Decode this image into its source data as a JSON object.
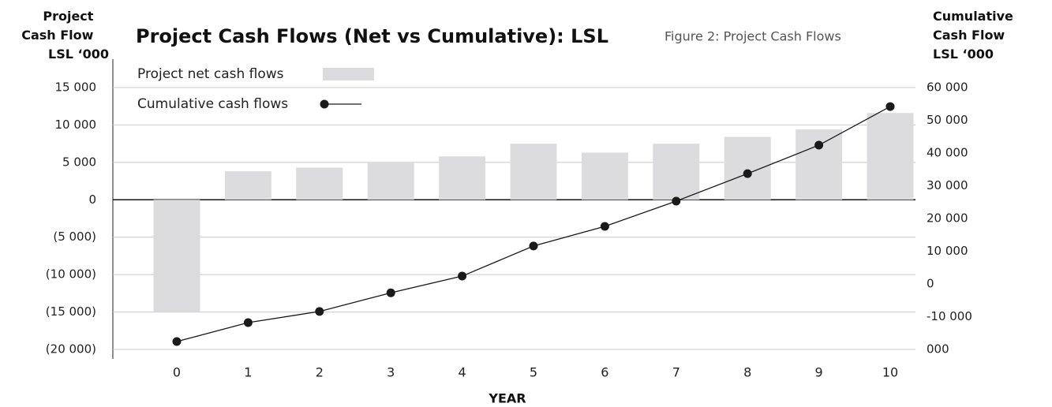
{
  "chart_data": {
    "type": "bar_line",
    "title": "Project Cash Flows (Net vs Cumulative): LSL",
    "caption": "Figure 2: Project Cash Flows",
    "ylabel": [
      "Project",
      "Cash Flow",
      "LSL ‘000"
    ],
    "y2label": [
      "Cumulative",
      "Cash Flow",
      "LSL ‘000"
    ],
    "xlabel": "YEAR",
    "categories": [
      "0",
      "1",
      "2",
      "3",
      "4",
      "5",
      "6",
      "7",
      "8",
      "9",
      "10"
    ],
    "series": [
      {
        "name": "Project net cash flows",
        "type": "bar",
        "color": "#dcdcde",
        "values": [
          -15000,
          3800,
          4300,
          5000,
          5800,
          7500,
          6300,
          7500,
          8400,
          9400,
          11600
        ]
      },
      {
        "name": "Cumulative cash flows",
        "type": "line",
        "axis": "y2",
        "color": "#1a1a1a",
        "values": [
          -17600,
          -11800,
          -8400,
          -2700,
          2400,
          11600,
          17600,
          25300,
          33700,
          42400,
          54200
        ]
      }
    ],
    "ylim": [
      -20000,
      15000
    ],
    "yticks": [
      {
        "value": 15000,
        "label": "15 000"
      },
      {
        "value": 10000,
        "label": "10 000"
      },
      {
        "value": 5000,
        "label": "5 000"
      },
      0,
      {
        "value": -5000,
        "label": "(5 000)"
      },
      {
        "value": -10000,
        "label": "(10 000)"
      },
      {
        "value": -15000,
        "label": "(15 000)"
      },
      {
        "value": -20000,
        "label": "(20 000)"
      }
    ],
    "y2lim": [
      -20000,
      60000
    ],
    "y2ticks": [
      {
        "value": 60000,
        "label": "60 000"
      },
      {
        "value": 50000,
        "label": "50 000"
      },
      {
        "value": 40000,
        "label": "40 000"
      },
      {
        "value": 30000,
        "label": "30 000"
      },
      {
        "value": 20000,
        "label": "20 000"
      },
      {
        "value": 10000,
        "label": "10 000"
      },
      0,
      {
        "value": -10000,
        "label": "-10 000"
      },
      {
        "value": -20000,
        "label": "000"
      }
    ],
    "grid": true
  }
}
